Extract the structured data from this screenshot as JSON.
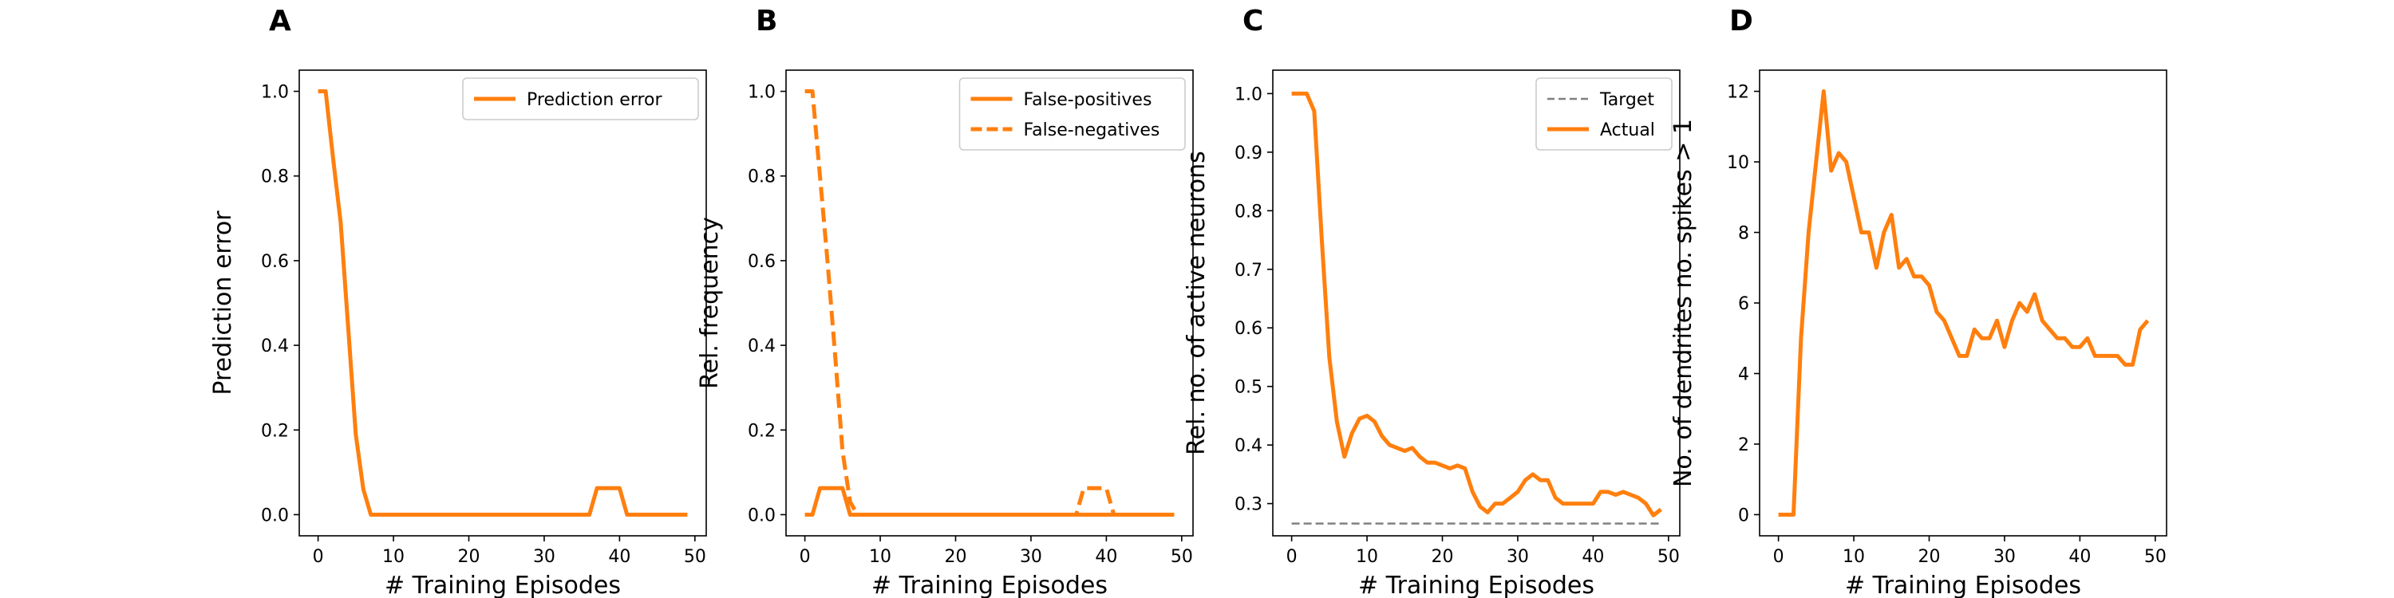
{
  "colors": {
    "orange": "#ff7f0e",
    "gray": "#808080"
  },
  "chart_data": [
    {
      "panel": "A",
      "type": "line",
      "xlabel": "# Training Episodes",
      "ylabel": "Prediction error",
      "xlim": [
        -2.5,
        51.5
      ],
      "ylim": [
        -0.05,
        1.05
      ],
      "xticks": [
        0,
        10,
        20,
        30,
        40,
        50
      ],
      "yticks": [
        0.0,
        0.2,
        0.4,
        0.6,
        0.8,
        1.0
      ],
      "ytick_labels": [
        "0.0",
        "0.2",
        "0.4",
        "0.6",
        "0.8",
        "1.0"
      ],
      "legend": "top-right",
      "series": [
        {
          "name": "Prediction error",
          "style": "solid",
          "color": "#ff7f0e",
          "x": [
            0,
            1,
            2,
            3,
            4,
            5,
            6,
            7,
            8,
            9,
            10,
            11,
            12,
            13,
            14,
            15,
            16,
            17,
            18,
            19,
            20,
            21,
            22,
            23,
            24,
            25,
            26,
            27,
            28,
            29,
            30,
            31,
            32,
            33,
            34,
            35,
            36,
            37,
            38,
            39,
            40,
            41,
            42,
            43,
            44,
            45,
            46,
            47,
            48,
            49
          ],
          "y": [
            1.0,
            1.0,
            0.84,
            0.69,
            0.44,
            0.19,
            0.06,
            0,
            0,
            0,
            0,
            0,
            0,
            0,
            0,
            0,
            0,
            0,
            0,
            0,
            0,
            0,
            0,
            0,
            0,
            0,
            0,
            0,
            0,
            0,
            0,
            0,
            0,
            0,
            0,
            0,
            0,
            0.0625,
            0.0625,
            0.0625,
            0.0625,
            0,
            0,
            0,
            0,
            0,
            0,
            0,
            0,
            0
          ]
        }
      ]
    },
    {
      "panel": "B",
      "type": "line",
      "xlabel": "# Training Episodes",
      "ylabel": "Rel. frequency",
      "xlim": [
        -2.5,
        51.5
      ],
      "ylim": [
        -0.05,
        1.05
      ],
      "xticks": [
        0,
        10,
        20,
        30,
        40,
        50
      ],
      "yticks": [
        0.0,
        0.2,
        0.4,
        0.6,
        0.8,
        1.0
      ],
      "ytick_labels": [
        "0.0",
        "0.2",
        "0.4",
        "0.6",
        "0.8",
        "1.0"
      ],
      "legend": "top-right",
      "series": [
        {
          "name": "False-positives",
          "style": "solid",
          "color": "#ff7f0e",
          "x": [
            0,
            1,
            2,
            3,
            4,
            5,
            6,
            7,
            8,
            9,
            10,
            11,
            12,
            13,
            14,
            15,
            16,
            17,
            18,
            19,
            20,
            21,
            22,
            23,
            24,
            25,
            26,
            27,
            28,
            29,
            30,
            31,
            32,
            33,
            34,
            35,
            36,
            37,
            38,
            39,
            40,
            41,
            42,
            43,
            44,
            45,
            46,
            47,
            48,
            49
          ],
          "y": [
            0,
            0,
            0.0625,
            0.0625,
            0.0625,
            0.0625,
            0,
            0,
            0,
            0,
            0,
            0,
            0,
            0,
            0,
            0,
            0,
            0,
            0,
            0,
            0,
            0,
            0,
            0,
            0,
            0,
            0,
            0,
            0,
            0,
            0,
            0,
            0,
            0,
            0,
            0,
            0,
            0,
            0,
            0,
            0,
            0,
            0,
            0,
            0,
            0,
            0,
            0,
            0,
            0
          ]
        },
        {
          "name": "False-negatives",
          "style": "dashed",
          "color": "#ff7f0e",
          "x": [
            0,
            1,
            2,
            3,
            4,
            5,
            6,
            7,
            8,
            9,
            10,
            11,
            12,
            13,
            14,
            15,
            16,
            17,
            18,
            19,
            20,
            21,
            22,
            23,
            24,
            25,
            26,
            27,
            28,
            29,
            30,
            31,
            32,
            33,
            34,
            35,
            36,
            37,
            38,
            39,
            40,
            41,
            42,
            43,
            44,
            45,
            46,
            47,
            48,
            49
          ],
          "y": [
            1.0,
            1.0,
            0.8,
            0.6,
            0.38,
            0.15,
            0.03,
            0,
            0,
            0,
            0,
            0,
            0,
            0,
            0,
            0,
            0,
            0,
            0,
            0,
            0,
            0,
            0,
            0,
            0,
            0,
            0,
            0,
            0,
            0,
            0,
            0,
            0,
            0,
            0,
            0,
            0,
            0.0625,
            0.0625,
            0.0625,
            0.0625,
            0,
            0,
            0,
            0,
            0,
            0,
            0,
            0,
            0
          ]
        }
      ]
    },
    {
      "panel": "C",
      "type": "line",
      "xlabel": "# Training Episodes",
      "ylabel": "Rel. no. of active neurons",
      "xlim": [
        -2.5,
        51.5
      ],
      "ylim": [
        0.245,
        1.04
      ],
      "xticks": [
        0,
        10,
        20,
        30,
        40,
        50
      ],
      "yticks": [
        0.3,
        0.4,
        0.5,
        0.6,
        0.7,
        0.8,
        0.9,
        1.0
      ],
      "ytick_labels": [
        "0.3",
        "0.4",
        "0.5",
        "0.6",
        "0.7",
        "0.8",
        "0.9",
        "1.0"
      ],
      "legend": "top-right",
      "series": [
        {
          "name": "Target",
          "style": "dashed-thin",
          "color": "#808080",
          "x": [
            0,
            49
          ],
          "y": [
            0.266,
            0.266
          ]
        },
        {
          "name": "Actual",
          "style": "solid",
          "color": "#ff7f0e",
          "x": [
            0,
            1,
            2,
            3,
            4,
            5,
            6,
            7,
            8,
            9,
            10,
            11,
            12,
            13,
            14,
            15,
            16,
            17,
            18,
            19,
            20,
            21,
            22,
            23,
            24,
            25,
            26,
            27,
            28,
            29,
            30,
            31,
            32,
            33,
            34,
            35,
            36,
            37,
            38,
            39,
            40,
            41,
            42,
            43,
            44,
            45,
            46,
            47,
            48,
            49
          ],
          "y": [
            1.0,
            1.0,
            1.0,
            0.97,
            0.75,
            0.55,
            0.44,
            0.38,
            0.42,
            0.445,
            0.45,
            0.44,
            0.415,
            0.4,
            0.395,
            0.39,
            0.395,
            0.38,
            0.37,
            0.37,
            0.365,
            0.36,
            0.365,
            0.36,
            0.32,
            0.295,
            0.285,
            0.3,
            0.3,
            0.31,
            0.32,
            0.34,
            0.35,
            0.34,
            0.34,
            0.31,
            0.3,
            0.3,
            0.3,
            0.3,
            0.3,
            0.32,
            0.32,
            0.315,
            0.32,
            0.315,
            0.31,
            0.3,
            0.28,
            0.29
          ]
        }
      ]
    },
    {
      "panel": "D",
      "type": "line",
      "xlabel": "# Training Episodes",
      "ylabel": "No. of dendrites no. spikes > 1",
      "xlim": [
        -2.5,
        51.5
      ],
      "ylim": [
        -0.6,
        12.6
      ],
      "xticks": [
        0,
        10,
        20,
        30,
        40,
        50
      ],
      "yticks": [
        0,
        2,
        4,
        6,
        8,
        10,
        12
      ],
      "ytick_labels": [
        "0",
        "2",
        "4",
        "6",
        "8",
        "10",
        "12"
      ],
      "legend": "none",
      "series": [
        {
          "name": "",
          "style": "solid",
          "color": "#ff7f0e",
          "x": [
            0,
            1,
            2,
            3,
            4,
            5,
            6,
            7,
            8,
            9,
            10,
            11,
            12,
            13,
            14,
            15,
            16,
            17,
            18,
            19,
            20,
            21,
            22,
            23,
            24,
            25,
            26,
            27,
            28,
            29,
            30,
            31,
            32,
            33,
            34,
            35,
            36,
            37,
            38,
            39,
            40,
            41,
            42,
            43,
            44,
            45,
            46,
            47,
            48,
            49
          ],
          "y": [
            0,
            0,
            0,
            5,
            8,
            10,
            12,
            9.75,
            10.25,
            10,
            9,
            8,
            8,
            7,
            8,
            8.5,
            7,
            7.25,
            6.75,
            6.75,
            6.5,
            5.75,
            5.5,
            5,
            4.5,
            4.5,
            5.25,
            5,
            5,
            5.5,
            4.75,
            5.5,
            6,
            5.75,
            6.25,
            5.5,
            5.25,
            5,
            5,
            4.75,
            4.75,
            5,
            4.5,
            4.5,
            4.5,
            4.5,
            4.25,
            4.25,
            5.25,
            5.5
          ]
        }
      ]
    }
  ]
}
